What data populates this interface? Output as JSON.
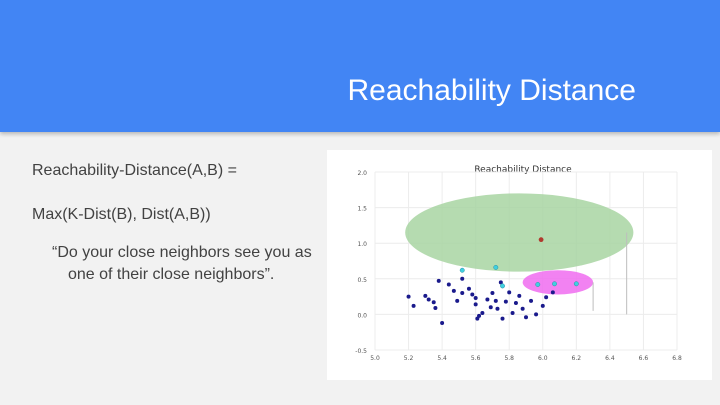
{
  "slide": {
    "title": "Reachability Distance",
    "formula_line1": "Reachability-Distance(A,B) =",
    "formula_line2": "Max(K-Dist(B), Dist(A,B))",
    "quote": "“Do your close neighbors see you as one of their close neighbors”."
  },
  "colors": {
    "header": "#4285f4",
    "title_text": "#ffffff",
    "body_text": "#424242",
    "green_circle": "#a8d5a2",
    "magenta_circle": "#f06cf0",
    "points": "#1a1a8c",
    "highlight_points": "#40d0e0",
    "point_A": "#b03a2e"
  },
  "chart_data": {
    "type": "scatter",
    "title": "Reachability Distance",
    "xlabel": "",
    "ylabel": "",
    "xlim": [
      5.0,
      6.8
    ],
    "ylim": [
      -0.5,
      2.0
    ],
    "xticks": [
      "5.0",
      "5.2",
      "5.4",
      "5.6",
      "5.8",
      "6.0",
      "6.2",
      "6.4",
      "6.6",
      "6.8"
    ],
    "yticks": [
      "2.0",
      "1.5",
      "1.0",
      "0.5",
      "0.0",
      "-0.5"
    ],
    "grid": true,
    "regions": [
      {
        "shape": "ellipse",
        "cx": 5.86,
        "cy": 1.15,
        "rx": 0.68,
        "ry": 0.55,
        "color": "green"
      },
      {
        "shape": "ellipse",
        "cx": 6.09,
        "cy": 0.45,
        "rx": 0.21,
        "ry": 0.17,
        "color": "magenta"
      }
    ],
    "vlines": [
      {
        "x": 6.5,
        "y_from": 0.0,
        "y_to": 1.15
      },
      {
        "x": 6.3,
        "y_from": 0.05,
        "y_to": 0.45
      }
    ],
    "point_A": {
      "x": 5.99,
      "y": 1.05
    },
    "highlight_points": [
      {
        "x": 5.52,
        "y": 0.62
      },
      {
        "x": 5.72,
        "y": 0.66
      },
      {
        "x": 5.76,
        "y": 0.4
      },
      {
        "x": 5.97,
        "y": 0.42
      },
      {
        "x": 6.07,
        "y": 0.43
      },
      {
        "x": 6.2,
        "y": 0.43
      }
    ],
    "points": [
      {
        "x": 5.2,
        "y": 0.25
      },
      {
        "x": 5.23,
        "y": 0.12
      },
      {
        "x": 5.3,
        "y": 0.26
      },
      {
        "x": 5.32,
        "y": 0.21
      },
      {
        "x": 5.35,
        "y": 0.17
      },
      {
        "x": 5.36,
        "y": 0.09
      },
      {
        "x": 5.38,
        "y": 0.47
      },
      {
        "x": 5.4,
        "y": -0.12
      },
      {
        "x": 5.44,
        "y": 0.42
      },
      {
        "x": 5.47,
        "y": 0.33
      },
      {
        "x": 5.49,
        "y": 0.19
      },
      {
        "x": 5.52,
        "y": 0.5
      },
      {
        "x": 5.52,
        "y": 0.3
      },
      {
        "x": 5.56,
        "y": 0.36
      },
      {
        "x": 5.58,
        "y": 0.28
      },
      {
        "x": 5.6,
        "y": 0.23
      },
      {
        "x": 5.6,
        "y": 0.14
      },
      {
        "x": 5.61,
        "y": -0.06
      },
      {
        "x": 5.62,
        "y": -0.02
      },
      {
        "x": 5.64,
        "y": 0.02
      },
      {
        "x": 5.67,
        "y": 0.21
      },
      {
        "x": 5.69,
        "y": 0.1
      },
      {
        "x": 5.7,
        "y": 0.3
      },
      {
        "x": 5.72,
        "y": 0.19
      },
      {
        "x": 5.73,
        "y": 0.08
      },
      {
        "x": 5.75,
        "y": 0.45
      },
      {
        "x": 5.76,
        "y": -0.06
      },
      {
        "x": 5.78,
        "y": 0.18
      },
      {
        "x": 5.8,
        "y": 0.31
      },
      {
        "x": 5.82,
        "y": 0.02
      },
      {
        "x": 5.84,
        "y": 0.16
      },
      {
        "x": 5.86,
        "y": 0.26
      },
      {
        "x": 5.88,
        "y": 0.08
      },
      {
        "x": 5.9,
        "y": -0.04
      },
      {
        "x": 5.93,
        "y": 0.19
      },
      {
        "x": 5.96,
        "y": 0.0
      },
      {
        "x": 6.0,
        "y": 0.12
      },
      {
        "x": 6.02,
        "y": 0.24
      },
      {
        "x": 6.06,
        "y": 0.31
      }
    ]
  }
}
